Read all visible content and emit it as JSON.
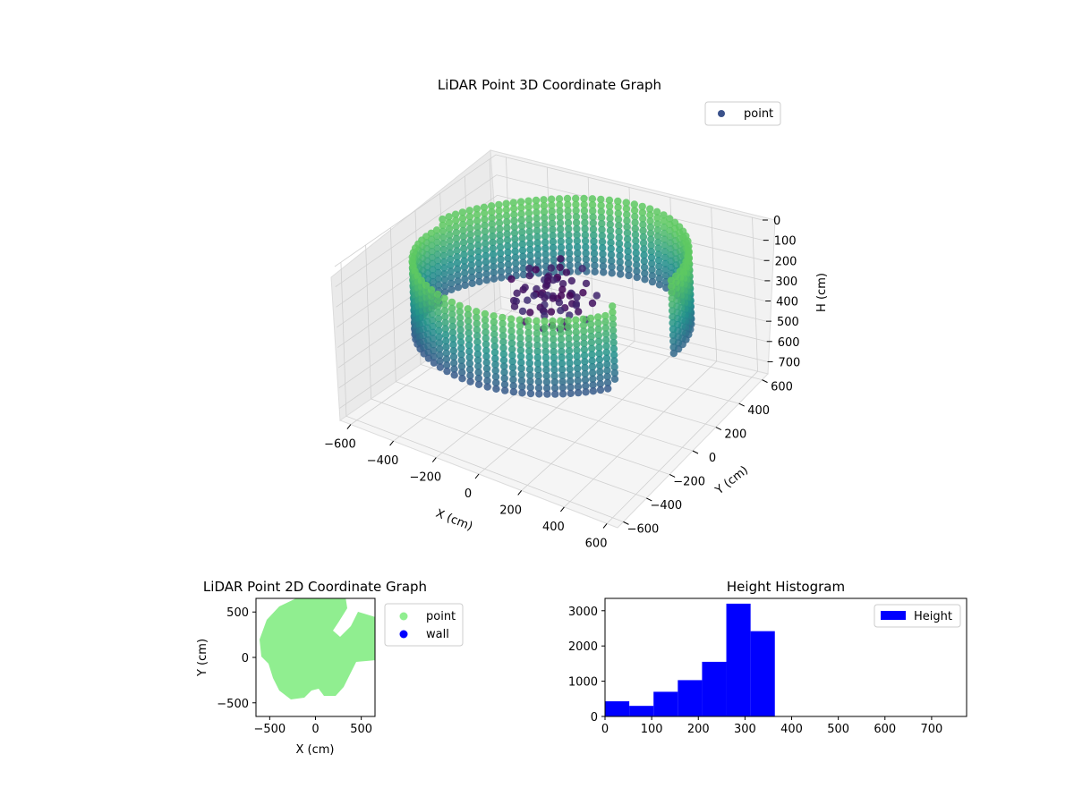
{
  "chart_data": [
    {
      "type": "scatter",
      "title": "LiDAR Point 3D Coordinate Graph",
      "xlabel": "X (cm)",
      "ylabel": "Y (cm)",
      "zlabel": "H (cm)",
      "xlim": [
        -650,
        650
      ],
      "ylim": [
        -650,
        650
      ],
      "zlim": [
        0,
        760
      ],
      "z_axis_inverted": true,
      "xticks": [
        -600,
        -400,
        -200,
        0,
        200,
        400,
        600
      ],
      "yticks": [
        -600,
        -400,
        -200,
        0,
        200,
        400,
        600
      ],
      "zticks": [
        0,
        100,
        200,
        300,
        400,
        500,
        600,
        700
      ],
      "grid": true,
      "legend": {
        "position": "top-right",
        "entries": [
          "point"
        ]
      },
      "colormap": "viridis (colored by height)",
      "series": [
        {
          "name": "point",
          "color": "#3b528b",
          "description_points_sample": [
            {
              "x": -500,
              "y": 300,
              "h": 150
            },
            {
              "x": -300,
              "y": 500,
              "h": 50
            },
            {
              "x": 0,
              "y": 600,
              "h": 30
            },
            {
              "x": 300,
              "y": 500,
              "h": 80
            },
            {
              "x": 500,
              "y": 200,
              "h": 200
            },
            {
              "x": 600,
              "y": -100,
              "h": 250
            },
            {
              "x": 400,
              "y": -400,
              "h": 330
            },
            {
              "x": 0,
              "y": -450,
              "h": 350
            },
            {
              "x": -300,
              "y": -300,
              "h": 300
            },
            {
              "x": -550,
              "y": 0,
              "h": 280
            },
            {
              "x": -100,
              "y": 100,
              "h": 180
            },
            {
              "x": 50,
              "y": 0,
              "h": 250
            }
          ]
        }
      ]
    },
    {
      "type": "scatter",
      "title": "LiDAR Point 2D Coordinate Graph",
      "xlabel": "X (cm)",
      "ylabel": "Y (cm)",
      "xlim": [
        -650,
        650
      ],
      "ylim": [
        -650,
        650
      ],
      "xticks": [
        -500,
        0,
        500
      ],
      "yticks": [
        -500,
        0,
        500
      ],
      "legend": {
        "position": "outside-right",
        "entries": [
          "point",
          "wall"
        ]
      },
      "series": [
        {
          "name": "point",
          "color": "#90ee90"
        },
        {
          "name": "wall",
          "color": "#0000ff"
        }
      ]
    },
    {
      "type": "bar",
      "title": "Height Histogram",
      "xlabel": "",
      "ylabel": "",
      "xlim": [
        0,
        775
      ],
      "ylim": [
        0,
        3350
      ],
      "xticks": [
        0,
        100,
        200,
        300,
        400,
        500,
        600,
        700
      ],
      "yticks": [
        0,
        1000,
        2000,
        3000
      ],
      "legend": {
        "position": "top-right",
        "entries": [
          "Height"
        ]
      },
      "bin_edges": [
        0,
        52,
        104,
        156,
        208,
        260,
        312,
        364
      ],
      "values": [
        430,
        300,
        700,
        1030,
        1550,
        3200,
        2420
      ],
      "series": [
        {
          "name": "Height",
          "color": "#0000ff"
        }
      ]
    }
  ]
}
